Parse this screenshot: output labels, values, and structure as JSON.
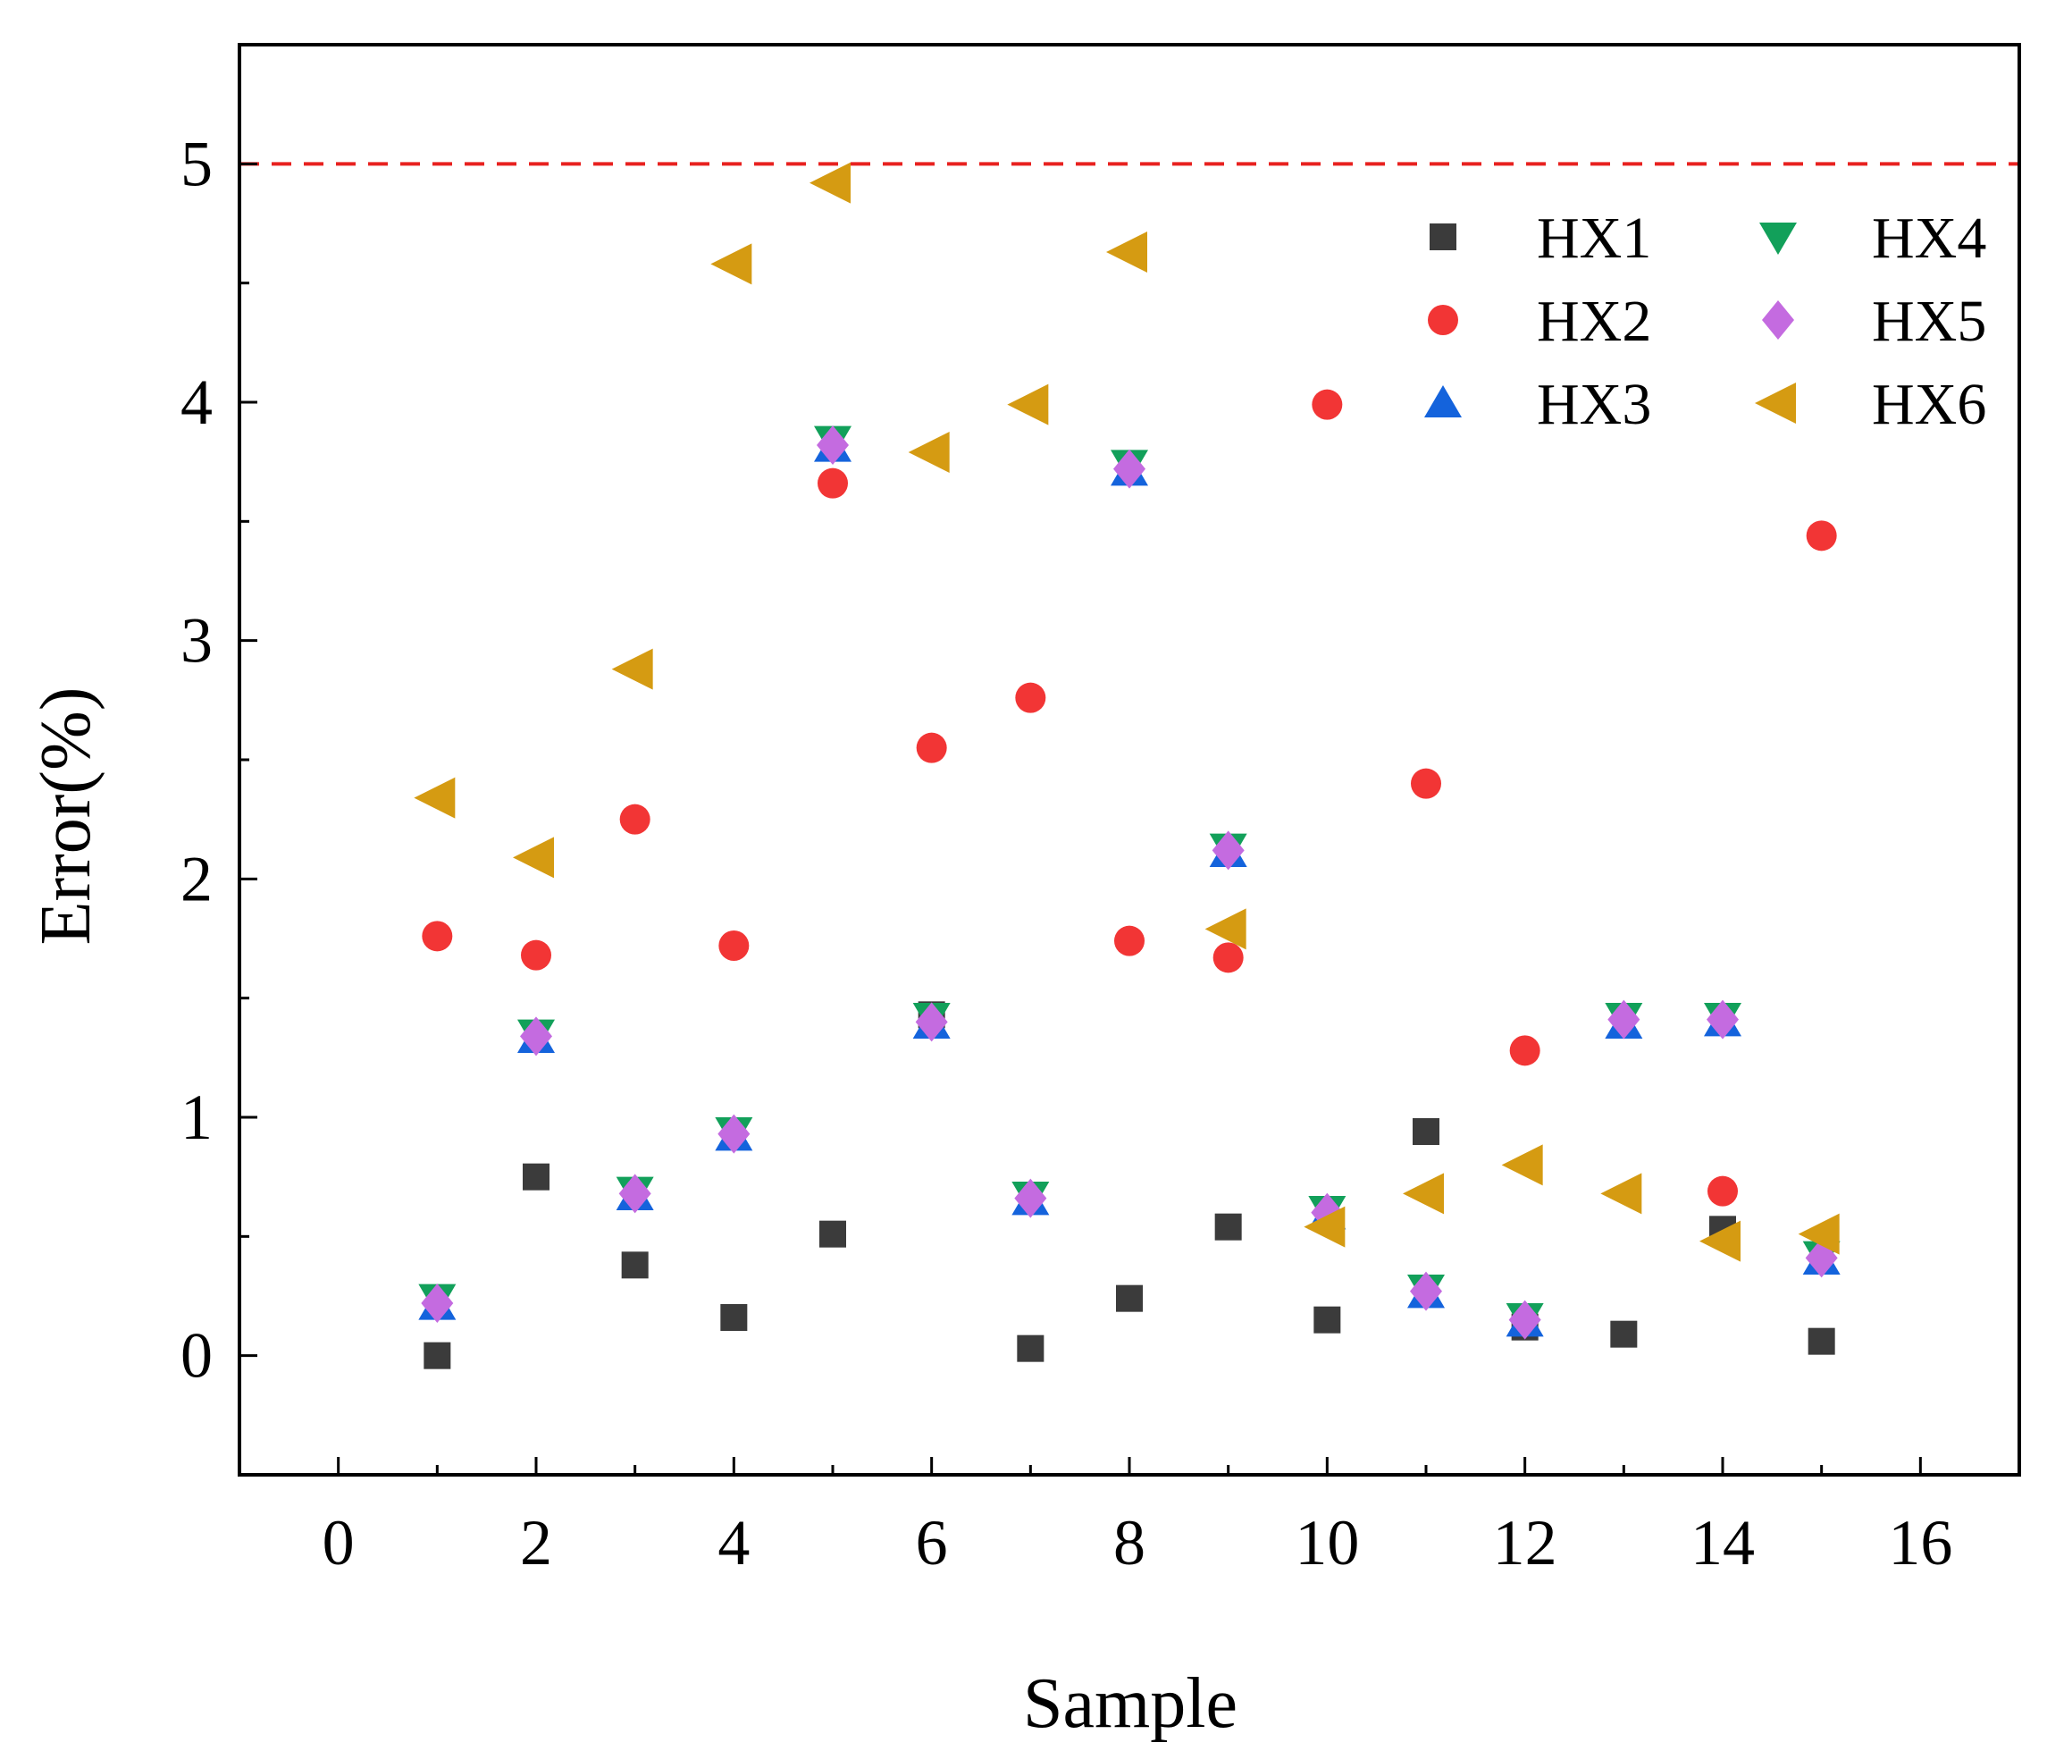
{
  "chart_data": {
    "type": "scatter",
    "title": "",
    "xlabel": "Sample",
    "ylabel": "Error(%)",
    "xlim": [
      -1,
      17
    ],
    "ylim": [
      -0.5,
      5.5
    ],
    "xticks": [
      0,
      2,
      4,
      6,
      8,
      10,
      12,
      14,
      16
    ],
    "yticks": [
      0,
      1,
      2,
      3,
      4,
      5
    ],
    "grid": false,
    "legend_position": "top-right",
    "reference_line": {
      "y": 5,
      "color": "#e8211f",
      "style": "dashed"
    },
    "x": [
      1,
      2,
      3,
      4,
      5,
      6,
      7,
      8,
      9,
      10,
      11,
      12,
      13,
      14,
      15
    ],
    "series": [
      {
        "name": "HX1",
        "marker": "square",
        "color": "#3b3b3b",
        "values": [
          0.0,
          0.75,
          0.38,
          0.16,
          0.51,
          1.43,
          0.03,
          0.24,
          0.54,
          0.15,
          0.94,
          0.12,
          0.09,
          0.53,
          0.06
        ]
      },
      {
        "name": "HX2",
        "marker": "circle",
        "color": "#f23535",
        "values": [
          1.76,
          1.68,
          2.25,
          1.72,
          3.66,
          2.55,
          2.76,
          1.74,
          1.67,
          3.99,
          2.4,
          1.28,
          null,
          0.69,
          3.44
        ]
      },
      {
        "name": "HX3",
        "marker": "triangle-up",
        "color": "#1463dc",
        "values": [
          0.21,
          1.33,
          0.67,
          0.92,
          3.81,
          1.39,
          0.65,
          3.71,
          2.11,
          0.59,
          0.26,
          0.14,
          1.39,
          1.4,
          0.4
        ]
      },
      {
        "name": "HX4",
        "marker": "triangle-down",
        "color": "#12a05a",
        "values": [
          0.24,
          1.35,
          0.69,
          0.94,
          3.84,
          1.42,
          0.67,
          3.74,
          2.13,
          0.61,
          0.28,
          0.16,
          1.42,
          1.42,
          0.42
        ]
      },
      {
        "name": "HX5",
        "marker": "diamond",
        "color": "#c46be0",
        "values": [
          0.22,
          1.34,
          0.68,
          0.93,
          3.82,
          1.4,
          0.66,
          3.72,
          2.12,
          0.6,
          0.27,
          0.15,
          1.41,
          1.41,
          0.41
        ]
      },
      {
        "name": "HX6",
        "marker": "triangle-left",
        "color": "#d59b12",
        "values": [
          2.34,
          2.09,
          2.88,
          4.58,
          4.92,
          3.79,
          3.99,
          4.63,
          1.79,
          0.54,
          0.68,
          0.8,
          0.68,
          0.48,
          0.51
        ]
      }
    ]
  }
}
